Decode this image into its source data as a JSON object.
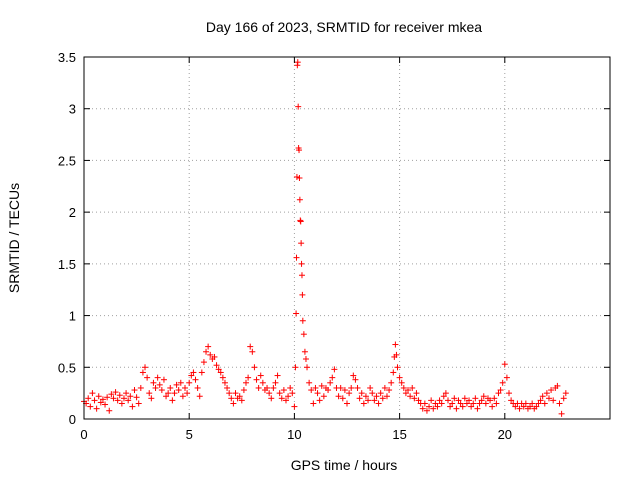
{
  "chart_data": {
    "type": "scatter",
    "title": "Day 166 of 2023, SRMTID for receiver mkea",
    "xlabel": "GPS time / hours",
    "ylabel": "SRMTID / TECUs",
    "xlim": [
      0,
      25
    ],
    "ylim": [
      0,
      3.5
    ],
    "grid": true,
    "marker": "+",
    "color": "#ff0000",
    "x_ticks": [
      0,
      5,
      10,
      15,
      20
    ],
    "x_tick_labels": [
      "0",
      "5",
      "10",
      "15",
      "20"
    ],
    "y_ticks": [
      0,
      0.5,
      1,
      1.5,
      2,
      2.5,
      3,
      3.5
    ],
    "y_tick_labels": [
      "0",
      "0.5",
      "1",
      "1.5",
      "2",
      "2.5",
      "3",
      "3.5"
    ],
    "series": [
      {
        "name": "SRMTID",
        "points": [
          [
            0.0,
            0.17
          ],
          [
            0.1,
            0.15
          ],
          [
            0.2,
            0.2
          ],
          [
            0.3,
            0.12
          ],
          [
            0.4,
            0.25
          ],
          [
            0.5,
            0.18
          ],
          [
            0.6,
            0.1
          ],
          [
            0.7,
            0.22
          ],
          [
            0.8,
            0.16
          ],
          [
            0.9,
            0.19
          ],
          [
            1.0,
            0.14
          ],
          [
            1.1,
            0.21
          ],
          [
            1.2,
            0.08
          ],
          [
            1.3,
            0.24
          ],
          [
            1.4,
            0.2
          ],
          [
            1.5,
            0.26
          ],
          [
            1.6,
            0.18
          ],
          [
            1.7,
            0.23
          ],
          [
            1.8,
            0.15
          ],
          [
            1.9,
            0.2
          ],
          [
            2.0,
            0.25
          ],
          [
            2.1,
            0.18
          ],
          [
            2.2,
            0.22
          ],
          [
            2.3,
            0.12
          ],
          [
            2.4,
            0.28
          ],
          [
            2.5,
            0.21
          ],
          [
            2.6,
            0.15
          ],
          [
            2.7,
            0.3
          ],
          [
            2.8,
            0.45
          ],
          [
            2.9,
            0.5
          ],
          [
            3.0,
            0.4
          ],
          [
            3.1,
            0.25
          ],
          [
            3.2,
            0.2
          ],
          [
            3.3,
            0.35
          ],
          [
            3.4,
            0.3
          ],
          [
            3.5,
            0.4
          ],
          [
            3.6,
            0.33
          ],
          [
            3.7,
            0.28
          ],
          [
            3.8,
            0.38
          ],
          [
            3.9,
            0.22
          ],
          [
            4.0,
            0.25
          ],
          [
            4.1,
            0.3
          ],
          [
            4.2,
            0.18
          ],
          [
            4.3,
            0.25
          ],
          [
            4.4,
            0.33
          ],
          [
            4.5,
            0.28
          ],
          [
            4.6,
            0.35
          ],
          [
            4.7,
            0.22
          ],
          [
            4.8,
            0.3
          ],
          [
            4.9,
            0.25
          ],
          [
            5.0,
            0.35
          ],
          [
            5.1,
            0.42
          ],
          [
            5.2,
            0.45
          ],
          [
            5.3,
            0.38
          ],
          [
            5.4,
            0.3
          ],
          [
            5.5,
            0.22
          ],
          [
            5.6,
            0.45
          ],
          [
            5.7,
            0.55
          ],
          [
            5.8,
            0.65
          ],
          [
            5.9,
            0.7
          ],
          [
            6.0,
            0.62
          ],
          [
            6.1,
            0.58
          ],
          [
            6.2,
            0.6
          ],
          [
            6.3,
            0.52
          ],
          [
            6.4,
            0.48
          ],
          [
            6.5,
            0.45
          ],
          [
            6.6,
            0.4
          ],
          [
            6.7,
            0.35
          ],
          [
            6.8,
            0.3
          ],
          [
            6.9,
            0.25
          ],
          [
            7.0,
            0.2
          ],
          [
            7.1,
            0.15
          ],
          [
            7.2,
            0.25
          ],
          [
            7.3,
            0.2
          ],
          [
            7.4,
            0.22
          ],
          [
            7.5,
            0.18
          ],
          [
            7.6,
            0.28
          ],
          [
            7.7,
            0.35
          ],
          [
            7.8,
            0.4
          ],
          [
            7.9,
            0.7
          ],
          [
            8.0,
            0.65
          ],
          [
            8.1,
            0.5
          ],
          [
            8.2,
            0.38
          ],
          [
            8.3,
            0.3
          ],
          [
            8.4,
            0.42
          ],
          [
            8.5,
            0.35
          ],
          [
            8.6,
            0.28
          ],
          [
            8.7,
            0.3
          ],
          [
            8.8,
            0.25
          ],
          [
            8.9,
            0.2
          ],
          [
            9.0,
            0.3
          ],
          [
            9.1,
            0.35
          ],
          [
            9.2,
            0.42
          ],
          [
            9.3,
            0.25
          ],
          [
            9.4,
            0.2
          ],
          [
            9.5,
            0.28
          ],
          [
            9.6,
            0.18
          ],
          [
            9.7,
            0.22
          ],
          [
            9.8,
            0.3
          ],
          [
            9.9,
            0.25
          ],
          [
            10.0,
            0.12
          ],
          [
            10.05,
            0.5
          ],
          [
            10.08,
            1.02
          ],
          [
            10.1,
            1.56
          ],
          [
            10.12,
            2.34
          ],
          [
            10.14,
            3.42
          ],
          [
            10.16,
            3.45
          ],
          [
            10.18,
            3.02
          ],
          [
            10.2,
            2.62
          ],
          [
            10.22,
            2.6
          ],
          [
            10.24,
            2.33
          ],
          [
            10.26,
            2.12
          ],
          [
            10.28,
            1.92
          ],
          [
            10.3,
            1.91
          ],
          [
            10.32,
            1.7
          ],
          [
            10.34,
            1.5
          ],
          [
            10.36,
            1.39
          ],
          [
            10.38,
            1.2
          ],
          [
            10.4,
            0.95
          ],
          [
            10.45,
            0.82
          ],
          [
            10.5,
            0.65
          ],
          [
            10.55,
            0.58
          ],
          [
            10.6,
            0.5
          ],
          [
            10.7,
            0.35
          ],
          [
            10.8,
            0.28
          ],
          [
            10.9,
            0.15
          ],
          [
            11.0,
            0.3
          ],
          [
            11.1,
            0.25
          ],
          [
            11.2,
            0.18
          ],
          [
            11.3,
            0.32
          ],
          [
            11.4,
            0.22
          ],
          [
            11.5,
            0.3
          ],
          [
            11.6,
            0.28
          ],
          [
            11.7,
            0.35
          ],
          [
            11.8,
            0.4
          ],
          [
            11.9,
            0.48
          ],
          [
            12.0,
            0.3
          ],
          [
            12.1,
            0.22
          ],
          [
            12.2,
            0.3
          ],
          [
            12.3,
            0.2
          ],
          [
            12.4,
            0.28
          ],
          [
            12.5,
            0.15
          ],
          [
            12.6,
            0.25
          ],
          [
            12.7,
            0.3
          ],
          [
            12.8,
            0.42
          ],
          [
            12.9,
            0.38
          ],
          [
            13.0,
            0.3
          ],
          [
            13.1,
            0.2
          ],
          [
            13.2,
            0.25
          ],
          [
            13.3,
            0.15
          ],
          [
            13.4,
            0.22
          ],
          [
            13.5,
            0.18
          ],
          [
            13.6,
            0.3
          ],
          [
            13.7,
            0.25
          ],
          [
            13.8,
            0.18
          ],
          [
            13.9,
            0.22
          ],
          [
            14.0,
            0.15
          ],
          [
            14.1,
            0.25
          ],
          [
            14.2,
            0.2
          ],
          [
            14.3,
            0.3
          ],
          [
            14.4,
            0.22
          ],
          [
            14.5,
            0.28
          ],
          [
            14.6,
            0.35
          ],
          [
            14.7,
            0.45
          ],
          [
            14.75,
            0.6
          ],
          [
            14.8,
            0.72
          ],
          [
            14.85,
            0.62
          ],
          [
            14.9,
            0.5
          ],
          [
            15.0,
            0.4
          ],
          [
            15.1,
            0.35
          ],
          [
            15.2,
            0.3
          ],
          [
            15.3,
            0.25
          ],
          [
            15.4,
            0.28
          ],
          [
            15.5,
            0.22
          ],
          [
            15.6,
            0.3
          ],
          [
            15.7,
            0.2
          ],
          [
            15.8,
            0.25
          ],
          [
            15.9,
            0.18
          ],
          [
            16.0,
            0.15
          ],
          [
            16.1,
            0.1
          ],
          [
            16.2,
            0.15
          ],
          [
            16.3,
            0.08
          ],
          [
            16.4,
            0.12
          ],
          [
            16.5,
            0.18
          ],
          [
            16.6,
            0.1
          ],
          [
            16.7,
            0.15
          ],
          [
            16.8,
            0.12
          ],
          [
            16.9,
            0.18
          ],
          [
            17.0,
            0.15
          ],
          [
            17.1,
            0.22
          ],
          [
            17.2,
            0.25
          ],
          [
            17.3,
            0.18
          ],
          [
            17.4,
            0.12
          ],
          [
            17.5,
            0.15
          ],
          [
            17.6,
            0.2
          ],
          [
            17.7,
            0.1
          ],
          [
            17.8,
            0.18
          ],
          [
            17.9,
            0.15
          ],
          [
            18.0,
            0.12
          ],
          [
            18.1,
            0.2
          ],
          [
            18.2,
            0.15
          ],
          [
            18.3,
            0.18
          ],
          [
            18.4,
            0.12
          ],
          [
            18.5,
            0.15
          ],
          [
            18.6,
            0.2
          ],
          [
            18.7,
            0.1
          ],
          [
            18.8,
            0.15
          ],
          [
            18.9,
            0.18
          ],
          [
            19.0,
            0.22
          ],
          [
            19.1,
            0.15
          ],
          [
            19.2,
            0.2
          ],
          [
            19.3,
            0.18
          ],
          [
            19.4,
            0.12
          ],
          [
            19.5,
            0.2
          ],
          [
            19.6,
            0.15
          ],
          [
            19.7,
            0.25
          ],
          [
            19.8,
            0.28
          ],
          [
            19.9,
            0.35
          ],
          [
            20.0,
            0.53
          ],
          [
            20.1,
            0.4
          ],
          [
            20.2,
            0.25
          ],
          [
            20.3,
            0.18
          ],
          [
            20.4,
            0.15
          ],
          [
            20.5,
            0.12
          ],
          [
            20.6,
            0.15
          ],
          [
            20.7,
            0.1
          ],
          [
            20.8,
            0.15
          ],
          [
            20.9,
            0.12
          ],
          [
            21.0,
            0.15
          ],
          [
            21.1,
            0.1
          ],
          [
            21.2,
            0.12
          ],
          [
            21.3,
            0.15
          ],
          [
            21.4,
            0.1
          ],
          [
            21.5,
            0.12
          ],
          [
            21.6,
            0.15
          ],
          [
            21.7,
            0.18
          ],
          [
            21.8,
            0.22
          ],
          [
            21.9,
            0.15
          ],
          [
            22.0,
            0.25
          ],
          [
            22.1,
            0.2
          ],
          [
            22.2,
            0.28
          ],
          [
            22.3,
            0.18
          ],
          [
            22.4,
            0.3
          ],
          [
            22.5,
            0.32
          ],
          [
            22.6,
            0.15
          ],
          [
            22.7,
            0.05
          ],
          [
            22.8,
            0.2
          ],
          [
            22.9,
            0.25
          ]
        ]
      }
    ]
  }
}
